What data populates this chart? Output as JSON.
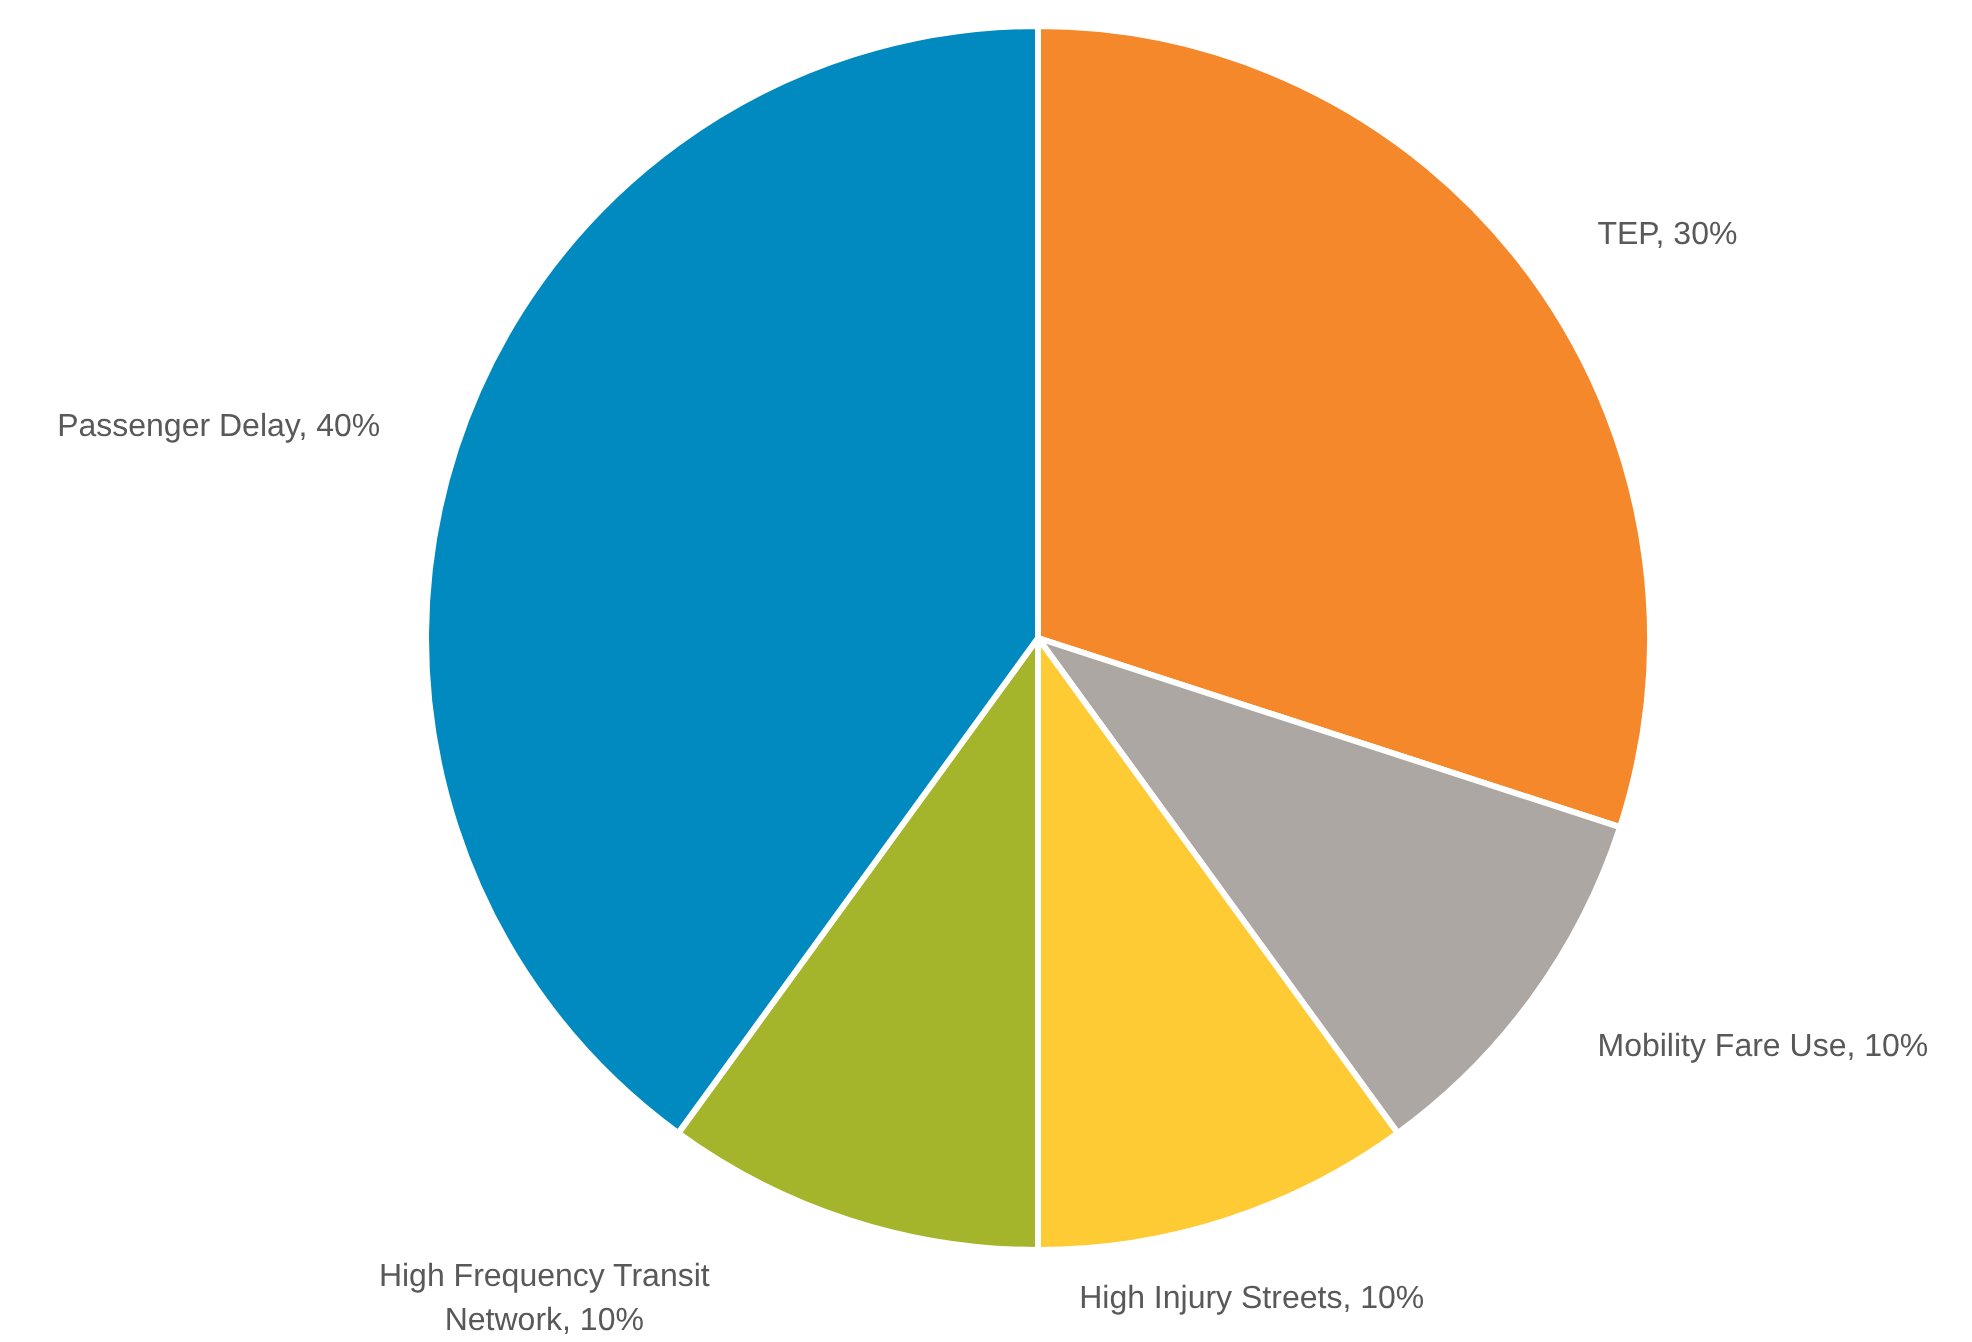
{
  "chart_data": {
    "type": "pie",
    "categories": [
      "TEP",
      "Mobility Fare Use",
      "High Injury Streets",
      "High Frequency Transit Network",
      "Passenger Delay"
    ],
    "values": [
      30,
      10,
      10,
      10,
      40
    ],
    "colors": [
      "#f5882a",
      "#aca7a2",
      "#fecb35",
      "#a5b52b",
      "#018abf"
    ],
    "value_labels": [
      "30%",
      "10%",
      "10%",
      "10%",
      "40%"
    ],
    "legend": false
  }
}
